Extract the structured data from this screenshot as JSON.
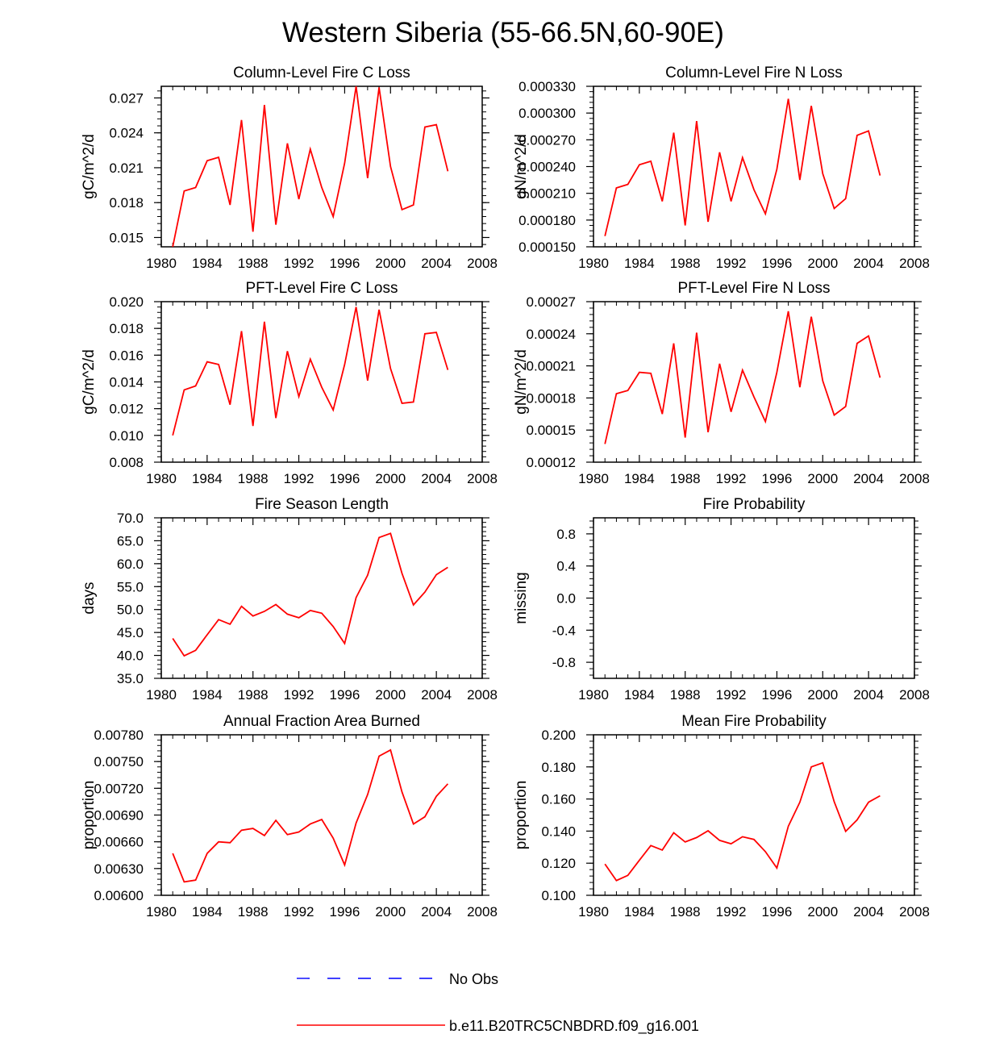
{
  "title": "Western Siberia (55-66.5N,60-90E)",
  "colors": {
    "model": "#ff0000",
    "obs": "#0000ff",
    "axis": "#000000"
  },
  "legend": {
    "obs_label": "No Obs",
    "model_label": "b.e11.B20TRC5CNBDRD.f09_g16.001"
  },
  "chart_data": [
    {
      "type": "line",
      "title": "Column-Level Fire C Loss",
      "ylabel": "gC/m^2/d",
      "xlim": [
        1980,
        2008
      ],
      "ylim": [
        0.0142,
        0.028
      ],
      "xticks": [
        1980,
        1984,
        1988,
        1992,
        1996,
        2000,
        2004,
        2008
      ],
      "xtick_labels": [
        "1980",
        "1984",
        "1988",
        "1992",
        "1996",
        "2000",
        "2004",
        "2008"
      ],
      "yticks": [
        0.015,
        0.018,
        0.021,
        0.024,
        0.027
      ],
      "ytick_labels": [
        "0.015",
        "0.018",
        "0.021",
        "0.024",
        "0.027"
      ],
      "ymajor": 0.003,
      "x": [
        1981,
        1982,
        1983,
        1984,
        1985,
        1986,
        1987,
        1988,
        1989,
        1990,
        1991,
        1992,
        1993,
        1994,
        1995,
        1996,
        1997,
        1998,
        1999,
        2000,
        2001,
        2002,
        2003,
        2004,
        2005
      ],
      "series": [
        {
          "name": "b.e11.B20TRC5CNBDRD.f09_g16.001",
          "values": [
            0.0142,
            0.019,
            0.0193,
            0.0216,
            0.0219,
            0.0178,
            0.0251,
            0.0155,
            0.0264,
            0.0161,
            0.0231,
            0.0183,
            0.0226,
            0.0193,
            0.0168,
            0.0214,
            0.028,
            0.0201,
            0.0279,
            0.0211,
            0.0174,
            0.0178,
            0.0245,
            0.0247,
            0.0207
          ]
        }
      ]
    },
    {
      "type": "line",
      "title": "Column-Level Fire N Loss",
      "ylabel": "gN/m^2/d",
      "xlim": [
        1980,
        2008
      ],
      "ylim": [
        0.00015,
        0.00033
      ],
      "xticks": [
        1980,
        1984,
        1988,
        1992,
        1996,
        2000,
        2004,
        2008
      ],
      "xtick_labels": [
        "1980",
        "1984",
        "1988",
        "1992",
        "1996",
        "2000",
        "2004",
        "2008"
      ],
      "yticks": [
        0.00015,
        0.00018,
        0.00021,
        0.00024,
        0.00027,
        0.0003,
        0.00033
      ],
      "ytick_labels": [
        "0.000150",
        "0.000180",
        "0.000210",
        "0.000240",
        "0.000270",
        "0.000300",
        "0.000330"
      ],
      "ymajor": 3e-05,
      "x": [
        1981,
        1982,
        1983,
        1984,
        1985,
        1986,
        1987,
        1988,
        1989,
        1990,
        1991,
        1992,
        1993,
        1994,
        1995,
        1996,
        1997,
        1998,
        1999,
        2000,
        2001,
        2002,
        2003,
        2004,
        2005
      ],
      "series": [
        {
          "name": "b.e11.B20TRC5CNBDRD.f09_g16.001",
          "values": [
            0.000162,
            0.000216,
            0.00022,
            0.000242,
            0.000246,
            0.000201,
            0.000278,
            0.000174,
            0.000291,
            0.000178,
            0.000256,
            0.000201,
            0.00025,
            0.000214,
            0.000187,
            0.000237,
            0.000316,
            0.000225,
            0.000308,
            0.000232,
            0.000193,
            0.000204,
            0.000275,
            0.00028,
            0.00023
          ]
        }
      ]
    },
    {
      "type": "line",
      "title": "PFT-Level Fire C Loss",
      "ylabel": "gC/m^2/d",
      "xlim": [
        1980,
        2008
      ],
      "ylim": [
        0.008,
        0.02
      ],
      "xticks": [
        1980,
        1984,
        1988,
        1992,
        1996,
        2000,
        2004,
        2008
      ],
      "xtick_labels": [
        "1980",
        "1984",
        "1988",
        "1992",
        "1996",
        "2000",
        "2004",
        "2008"
      ],
      "yticks": [
        0.008,
        0.01,
        0.012,
        0.014,
        0.016,
        0.018,
        0.02
      ],
      "ytick_labels": [
        "0.008",
        "0.010",
        "0.012",
        "0.014",
        "0.016",
        "0.018",
        "0.020"
      ],
      "ymajor": 0.002,
      "x": [
        1981,
        1982,
        1983,
        1984,
        1985,
        1986,
        1987,
        1988,
        1989,
        1990,
        1991,
        1992,
        1993,
        1994,
        1995,
        1996,
        1997,
        1998,
        1999,
        2000,
        2001,
        2002,
        2003,
        2004,
        2005
      ],
      "series": [
        {
          "name": "b.e11.B20TRC5CNBDRD.f09_g16.001",
          "values": [
            0.01,
            0.0134,
            0.0137,
            0.0155,
            0.0153,
            0.0123,
            0.0178,
            0.0107,
            0.0185,
            0.0113,
            0.0163,
            0.0129,
            0.0157,
            0.0136,
            0.0119,
            0.0153,
            0.0196,
            0.0141,
            0.0194,
            0.015,
            0.0124,
            0.0125,
            0.0176,
            0.0177,
            0.0149
          ]
        }
      ]
    },
    {
      "type": "line",
      "title": "PFT-Level Fire N Loss",
      "ylabel": "gN/m^2/d",
      "xlim": [
        1980,
        2008
      ],
      "ylim": [
        0.00012,
        0.00027
      ],
      "xticks": [
        1980,
        1984,
        1988,
        1992,
        1996,
        2000,
        2004,
        2008
      ],
      "xtick_labels": [
        "1980",
        "1984",
        "1988",
        "1992",
        "1996",
        "2000",
        "2004",
        "2008"
      ],
      "yticks": [
        0.00012,
        0.00015,
        0.00018,
        0.00021,
        0.00024,
        0.00027
      ],
      "ytick_labels": [
        "0.00012",
        "0.00015",
        "0.00018",
        "0.00021",
        "0.00024",
        "0.00027"
      ],
      "ymajor": 3e-05,
      "x": [
        1981,
        1982,
        1983,
        1984,
        1985,
        1986,
        1987,
        1988,
        1989,
        1990,
        1991,
        1992,
        1993,
        1994,
        1995,
        1996,
        1997,
        1998,
        1999,
        2000,
        2001,
        2002,
        2003,
        2004,
        2005
      ],
      "series": [
        {
          "name": "b.e11.B20TRC5CNBDRD.f09_g16.001",
          "values": [
            0.000137,
            0.000184,
            0.000187,
            0.000204,
            0.000203,
            0.000165,
            0.000231,
            0.000143,
            0.000241,
            0.000148,
            0.000212,
            0.000167,
            0.000206,
            0.000181,
            0.000158,
            0.000204,
            0.000261,
            0.00019,
            0.000256,
            0.000196,
            0.000164,
            0.000172,
            0.000231,
            0.000238,
            0.000199
          ]
        }
      ]
    },
    {
      "type": "line",
      "title": "Fire Season Length",
      "ylabel": "days",
      "xlim": [
        1980,
        2008
      ],
      "ylim": [
        35,
        70
      ],
      "xticks": [
        1980,
        1984,
        1988,
        1992,
        1996,
        2000,
        2004,
        2008
      ],
      "xtick_labels": [
        "1980",
        "1984",
        "1988",
        "1992",
        "1996",
        "2000",
        "2004",
        "2008"
      ],
      "yticks": [
        35,
        40,
        45,
        50,
        55,
        60,
        65,
        70
      ],
      "ytick_labels": [
        "35.0",
        "40.0",
        "45.0",
        "50.0",
        "55.0",
        "60.0",
        "65.0",
        "70.0"
      ],
      "ymajor": 5,
      "x": [
        1981,
        1982,
        1983,
        1984,
        1985,
        1986,
        1987,
        1988,
        1989,
        1990,
        1991,
        1992,
        1993,
        1994,
        1995,
        1996,
        1997,
        1998,
        1999,
        2000,
        2001,
        2002,
        2003,
        2004,
        2005
      ],
      "series": [
        {
          "name": "b.e11.B20TRC5CNBDRD.f09_g16.001",
          "values": [
            43.7,
            39.9,
            41.1,
            44.5,
            47.8,
            46.8,
            50.7,
            48.6,
            49.6,
            51.1,
            49.0,
            48.2,
            49.8,
            49.2,
            46.3,
            42.6,
            52.6,
            57.5,
            65.7,
            66.6,
            57.9,
            51.0,
            53.8,
            57.6,
            59.2
          ]
        }
      ]
    },
    {
      "type": "line",
      "title": "Fire Probability",
      "ylabel": "missing",
      "xlim": [
        1980,
        2008
      ],
      "ylim": [
        -1,
        1
      ],
      "xticks": [
        1980,
        1984,
        1988,
        1992,
        1996,
        2000,
        2004,
        2008
      ],
      "xtick_labels": [
        "1980",
        "1984",
        "1988",
        "1992",
        "1996",
        "2000",
        "2004",
        "2008"
      ],
      "yticks": [
        -0.8,
        -0.4,
        0.0,
        0.4,
        0.8
      ],
      "ytick_labels": [
        "-0.8",
        "-0.4",
        "0.0",
        "0.4",
        "0.8"
      ],
      "ymajor": 0.4,
      "x": [],
      "series": []
    },
    {
      "type": "line",
      "title": "Annual Fraction Area Burned",
      "ylabel": "proportion",
      "xlim": [
        1980,
        2008
      ],
      "ylim": [
        0.006,
        0.0078
      ],
      "xticks": [
        1980,
        1984,
        1988,
        1992,
        1996,
        2000,
        2004,
        2008
      ],
      "xtick_labels": [
        "1980",
        "1984",
        "1988",
        "1992",
        "1996",
        "2000",
        "2004",
        "2008"
      ],
      "yticks": [
        0.006,
        0.0063,
        0.0066,
        0.0069,
        0.0072,
        0.0075,
        0.0078
      ],
      "ytick_labels": [
        "0.00600",
        "0.00630",
        "0.00660",
        "0.00690",
        "0.00720",
        "0.00750",
        "0.00780"
      ],
      "ymajor": 0.0003,
      "x": [
        1981,
        1982,
        1983,
        1984,
        1985,
        1986,
        1987,
        1988,
        1989,
        1990,
        1991,
        1992,
        1993,
        1994,
        1995,
        1996,
        1997,
        1998,
        1999,
        2000,
        2001,
        2002,
        2003,
        2004,
        2005
      ],
      "series": [
        {
          "name": "b.e11.B20TRC5CNBDRD.f09_g16.001",
          "values": [
            0.00647,
            0.00615,
            0.00617,
            0.00647,
            0.0066,
            0.00659,
            0.00673,
            0.00675,
            0.00667,
            0.00684,
            0.00668,
            0.00671,
            0.0068,
            0.00685,
            0.00664,
            0.00634,
            0.00681,
            0.00713,
            0.00756,
            0.00763,
            0.00716,
            0.0068,
            0.00688,
            0.00711,
            0.00725
          ]
        }
      ]
    },
    {
      "type": "line",
      "title": "Mean Fire Probability",
      "ylabel": "proportion",
      "xlim": [
        1980,
        2008
      ],
      "ylim": [
        0.1,
        0.2
      ],
      "xticks": [
        1980,
        1984,
        1988,
        1992,
        1996,
        2000,
        2004,
        2008
      ],
      "xtick_labels": [
        "1980",
        "1984",
        "1988",
        "1992",
        "1996",
        "2000",
        "2004",
        "2008"
      ],
      "yticks": [
        0.1,
        0.12,
        0.14,
        0.16,
        0.18,
        0.2
      ],
      "ytick_labels": [
        "0.100",
        "0.120",
        "0.140",
        "0.160",
        "0.180",
        "0.200"
      ],
      "ymajor": 0.02,
      "x": [
        1981,
        1982,
        1983,
        1984,
        1985,
        1986,
        1987,
        1988,
        1989,
        1990,
        1991,
        1992,
        1993,
        1994,
        1995,
        1996,
        1997,
        1998,
        1999,
        2000,
        2001,
        2002,
        2003,
        2004,
        2005
      ],
      "series": [
        {
          "name": "b.e11.B20TRC5CNBDRD.f09_g16.001",
          "values": [
            0.1195,
            0.1092,
            0.1124,
            0.1218,
            0.131,
            0.1282,
            0.139,
            0.1332,
            0.136,
            0.1402,
            0.1342,
            0.1321,
            0.1365,
            0.1348,
            0.1272,
            0.117,
            0.143,
            0.158,
            0.18,
            0.1825,
            0.1583,
            0.1398,
            0.147,
            0.158,
            0.162
          ]
        }
      ]
    }
  ]
}
